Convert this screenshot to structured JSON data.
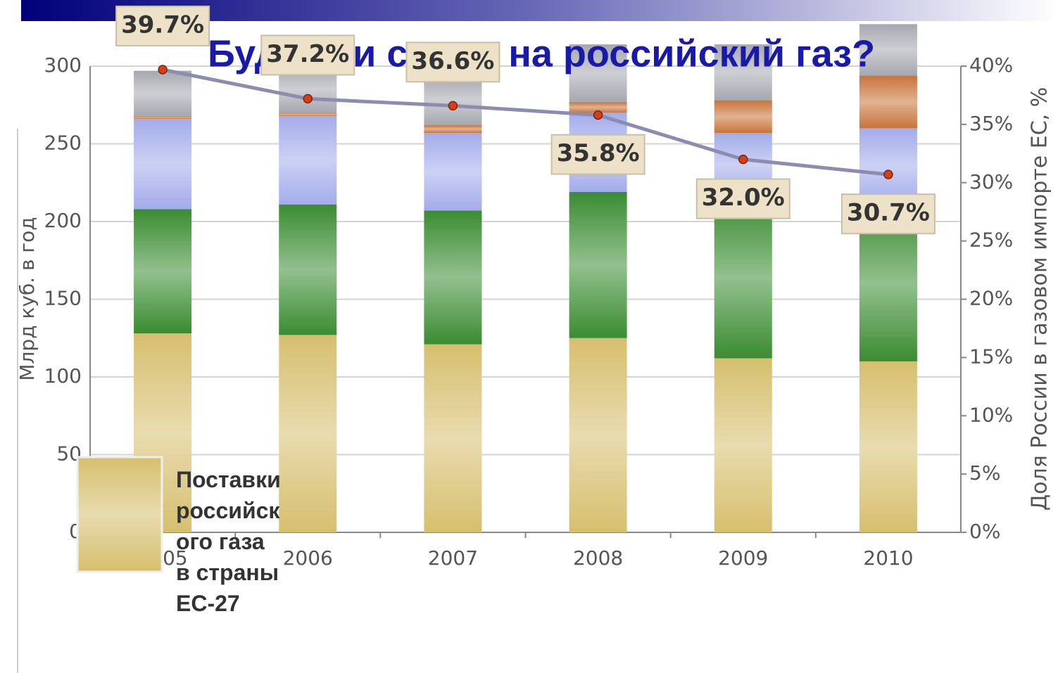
{
  "chart_data": {
    "type": "bar",
    "title": "Будет ли спрос на российский газ?",
    "ylabel": "Млрд куб. в год",
    "y2label": "Доля России в газовом импорте ЕС, %",
    "categories": [
      "2005",
      "2006",
      "2007",
      "2008",
      "2009",
      "2010"
    ],
    "ylim": [
      0,
      300
    ],
    "yticks": [
      0,
      50,
      100,
      150,
      200,
      250,
      300
    ],
    "y2lim": [
      0,
      40
    ],
    "y2ticks": [
      {
        "value": 0,
        "label": "0%"
      },
      {
        "value": 5,
        "label": "5%"
      },
      {
        "value": 10,
        "label": "10%"
      },
      {
        "value": 15,
        "label": "15%"
      },
      {
        "value": 20,
        "label": "20%"
      },
      {
        "value": 25,
        "label": "25%"
      },
      {
        "value": 30,
        "label": "30%"
      },
      {
        "value": 35,
        "label": "35%"
      },
      {
        "value": 40,
        "label": "40%"
      }
    ],
    "grid": true,
    "series": [
      {
        "name": "Поставки российского газа в страны ЕС-27",
        "color": "#d6bf6e",
        "values": [
          128,
          127,
          121,
          125,
          112,
          110
        ]
      },
      {
        "color": "#3b8c32",
        "values": [
          80,
          84,
          86,
          94,
          104,
          101
        ]
      },
      {
        "color": "#a3acea",
        "values": [
          58,
          57,
          50,
          51,
          41,
          49
        ]
      },
      {
        "color": "#c8743a",
        "values": [
          2,
          2,
          5,
          7,
          21,
          34
        ]
      },
      {
        "color": "#a6a8b0",
        "values": [
          29,
          30,
          32,
          37,
          36,
          33
        ]
      },
      {
        "type": "line",
        "axis": "y2",
        "color": "#8c8cb0",
        "values": [
          39.7,
          37.2,
          36.6,
          35.8,
          32.0,
          30.7
        ],
        "value_labels": [
          "39.7%",
          "37.2%",
          "36.6%",
          "35.8%",
          "32.0%",
          "30.7%"
        ]
      }
    ],
    "legend": "bottom-left"
  }
}
